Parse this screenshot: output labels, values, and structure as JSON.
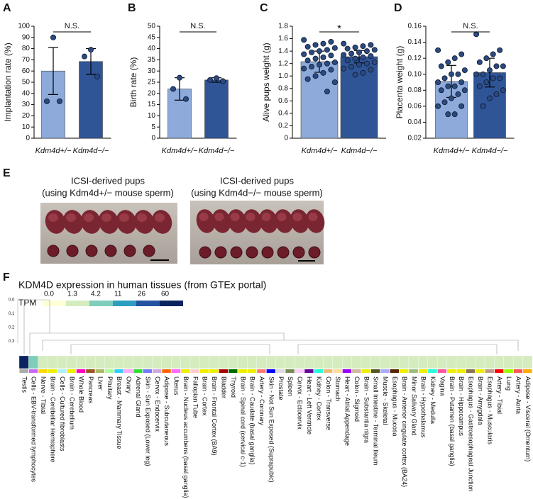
{
  "panel_labels": [
    "A",
    "B",
    "C",
    "D",
    "E",
    "F"
  ],
  "photos": {
    "left_title": "ICSI-derived pups",
    "left_subtitle": "(using Kdm4d+/− mouse sperm)",
    "right_title": "ICSI-derived pups",
    "right_subtitle": "(using Kdm4d−/− mouse sperm)"
  },
  "chart_data": [
    {
      "type": "bar",
      "y_label": "Implantation rate (%)",
      "categories": [
        "Kdm4d+/−",
        "Kdm4d−/−"
      ],
      "colors": [
        "#8eaadb",
        "#2f5597"
      ],
      "values": [
        60,
        68.5
      ],
      "errors": [
        21,
        11.5
      ],
      "points": [
        [
          90,
          33,
          33
        ],
        [
          79,
          73,
          55
        ]
      ],
      "point_color": "#2c4a7e",
      "significance": "N.S.",
      "ylim": [
        0,
        100
      ],
      "yticks": [
        0,
        10,
        20,
        30,
        40,
        50,
        60,
        70,
        80,
        90,
        100
      ]
    },
    {
      "type": "bar",
      "y_label": "Birth rate (%)",
      "categories": [
        "Kdm4d+/−",
        "Kdm4d−/−"
      ],
      "colors": [
        "#8eaadb",
        "#2f5597"
      ],
      "values": [
        22,
        26
      ],
      "errors": [
        5,
        1
      ],
      "points": [
        [
          27,
          22,
          17.5
        ],
        [
          26.8,
          26,
          25.5
        ]
      ],
      "point_color": "#2c4a7e",
      "significance": "N.S.",
      "ylim": [
        0,
        50
      ],
      "yticks": [
        0,
        5,
        10,
        15,
        20,
        25,
        30,
        35,
        40,
        45,
        50
      ]
    },
    {
      "type": "bar",
      "y_label": "Alive pups weight (g)",
      "categories": [
        "Kdm4d+/−",
        "Kdm4d−/−"
      ],
      "colors": [
        "#8eaadb",
        "#2f5597"
      ],
      "values": [
        1.23,
        1.31
      ],
      "errors": [
        0.17,
        0.1
      ],
      "points": [
        [
          1.58,
          1.55,
          1.52,
          1.5,
          1.47,
          1.45,
          1.42,
          1.4,
          1.38,
          1.35,
          1.33,
          1.3,
          1.28,
          1.25,
          1.22,
          1.2,
          1.18,
          1.15,
          1.12,
          1.1,
          1.05,
          1.0,
          0.95,
          0.9,
          0.75
        ],
        [
          1.52,
          1.5,
          1.48,
          1.46,
          1.44,
          1.42,
          1.4,
          1.38,
          1.36,
          1.34,
          1.32,
          1.3,
          1.28,
          1.25,
          1.22,
          1.2,
          1.18,
          1.15,
          1.12,
          1.1,
          1.05,
          1.02
        ]
      ],
      "point_color": "#2c4a7e",
      "significance": "*",
      "ylim": [
        0,
        1.8
      ],
      "yticks": [
        0,
        0.2,
        0.4,
        0.6,
        0.8,
        {
          "value": 1,
          "label": "1.0"
        },
        1.2,
        1.4,
        1.6,
        1.8
      ]
    },
    {
      "type": "bar",
      "y_label": "Placenta weight (g)",
      "categories": [
        "Kdm4d+/−",
        "Kdm4d−/−"
      ],
      "colors": [
        "#8eaadb",
        "#2f5597"
      ],
      "values": [
        0.091,
        0.102
      ],
      "errors": [
        0.02,
        0.018
      ],
      "points": [
        [
          0.13,
          0.125,
          0.12,
          0.115,
          0.11,
          0.105,
          0.1,
          0.1,
          0.095,
          0.09,
          0.09,
          0.085,
          0.085,
          0.08,
          0.08,
          0.075,
          0.07,
          0.065,
          0.06,
          0.06,
          0.05,
          0.05
        ],
        [
          0.15,
          0.13,
          0.125,
          0.12,
          0.115,
          0.11,
          0.11,
          0.105,
          0.1,
          0.1,
          0.095,
          0.095,
          0.09,
          0.085,
          0.08,
          0.075,
          0.07,
          0.06
        ]
      ],
      "point_color": "#2c4a7e",
      "significance": "N.S.",
      "ylim": [
        0.02,
        0.16
      ],
      "yticks": [
        0.02,
        0.04,
        0.06,
        0.08,
        {
          "value": 0.1,
          "label": "0.10"
        },
        0.12,
        0.14,
        0.16
      ]
    },
    {
      "type": "heatmap",
      "title": "KDM4D expression in human tissues (from GTEx portal)",
      "legend_title": "TPM",
      "legend_ticks": [
        {
          "value": 0,
          "label": "0.0"
        },
        1.3,
        4.2,
        11,
        26,
        60
      ],
      "legend_colors": [
        "#ffffd4",
        "#d5ecbf",
        "#7fcdbb",
        "#2c9fc0",
        "#2553a0",
        "#0b2461"
      ],
      "dendrogram_ticks": [
        "0.0",
        "0.1",
        "0.2",
        "0.3"
      ],
      "highlight_index": 0,
      "highlight_color": "#e8384f",
      "categories": [
        "Testis",
        "Cells - EBV-transformed lymphocytes",
        "Nerve - Tibial",
        "Brain - Cerebellar Hemisphere",
        "Cells - Cultured fibroblasts",
        "Brain - Cerebellum",
        "Whole Blood",
        "Pancreas",
        "Liver",
        "Pituitary",
        "Breast - Mammary Tissue",
        "Ovary",
        "Adrenal Gland",
        "Skin - Sun Exposed (Lower leg)",
        "Cervix - Endocervix",
        "Adipose - Subcutaneous",
        "Uterus",
        "Brain - Nucleus accumbens (basal ganglia)",
        "Fallopian Tube",
        "Brain - Cortex",
        "Brain - Frontal Cortex (BA9)",
        "Bladder",
        "Thyroid",
        "Brain - Spinal cord (cervical c-1)",
        "Brain - Caudate (basal ganglia)",
        "Artery - Coronary",
        "Skin - Not Sun Exposed (Suprapubic)",
        "Prostate",
        "Spleen",
        "Cervix - Ectocervix",
        "Heart - Left Ventricle",
        "Kidney - Cortex",
        "Colon - Transverse",
        "Stomach",
        "Heart - Atrial Appendage",
        "Colon - Sigmoid",
        "Brain - Substantia nigra",
        "Small Intestine - Terminal Ileum",
        "Muscle - Skeletal",
        "Esophagus - Mucosa",
        "Brain - Anterior cingulate cortex (BA24)",
        "Minor Salivary Gland",
        "Brain - Hypothalamus",
        "Kidney - Medulla",
        "Vagina",
        "Brain - Putamen (basal ganglia)",
        "Brain - Hippocampus",
        "Esophagus - Gastroesophageal Junction",
        "Brain - Amygdala",
        "Esophagus - Muscularis",
        "Artery - Tibial",
        "Lung",
        "Artery - Aorta",
        "Adipose - Visceral (Omentum)"
      ],
      "values": [
        60,
        4.3,
        2.2,
        2.1,
        2.1,
        2.0,
        2.0,
        1.9,
        1.9,
        1.9,
        1.8,
        1.8,
        1.8,
        1.8,
        1.8,
        1.7,
        1.7,
        1.7,
        1.7,
        1.7,
        1.7,
        1.6,
        1.6,
        1.6,
        1.6,
        1.6,
        1.6,
        1.6,
        1.6,
        1.5,
        1.5,
        1.5,
        1.5,
        1.5,
        1.5,
        1.5,
        1.5,
        1.5,
        1.5,
        1.5,
        1.4,
        1.4,
        1.4,
        1.4,
        1.4,
        1.4,
        1.4,
        1.4,
        1.4,
        1.4,
        1.4,
        1.4,
        1.3,
        1.3
      ],
      "tissue_colors": [
        "#aaaaaa",
        "#cc66ff",
        "#ffd700",
        "#eeee00",
        "#aaeeff",
        "#eeee00",
        "#ff00bb",
        "#995522",
        "#aabb66",
        "#aaff99",
        "#33ccff",
        "#ffaaff",
        "#33dd33",
        "#7777ff",
        "#ccaadd",
        "#ff6600",
        "#ff66ff",
        "#eeee00",
        "#ffcccc",
        "#eeee00",
        "#eeee00",
        "#aa0000",
        "#006600",
        "#eeee00",
        "#eeee00",
        "#ff7777",
        "#0000ff",
        "#dddddd",
        "#778855",
        "#ffccff",
        "#660099",
        "#22ffdd",
        "#eebb77",
        "#ffdd99",
        "#9900ff",
        "#cdb79e",
        "#eeee00",
        "#555522",
        "#aaaaff",
        "#552200",
        "#eeee00",
        "#99bb88",
        "#eeee00",
        "#22ffdd",
        "#ff5599",
        "#eeee00",
        "#eeee00",
        "#8b7355",
        "#eeee00",
        "#bb9988",
        "#ff0000",
        "#99ff00",
        "#ff5555",
        "#ffaa00"
      ]
    }
  ]
}
